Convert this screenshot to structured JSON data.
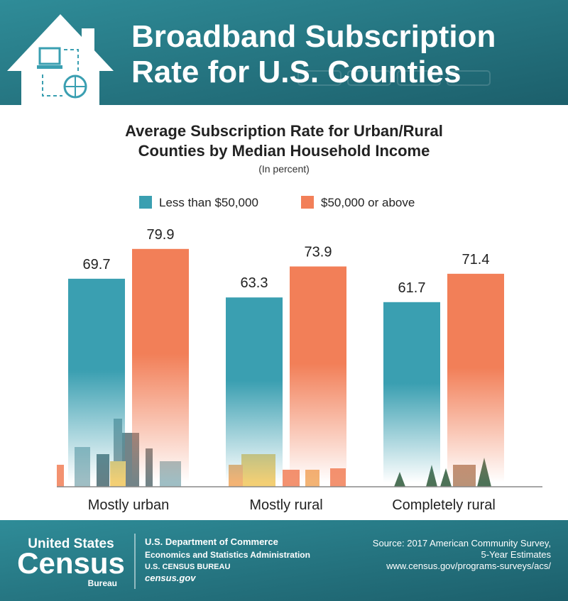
{
  "header": {
    "title_lines": [
      "Broadband Subscription",
      "Rate for U.S. Counties"
    ]
  },
  "chart_data": {
    "type": "bar",
    "title_lines": [
      "Average Subscription Rate for Urban/Rural",
      "Counties by Median Household Income"
    ],
    "subtitle": "(In percent)",
    "categories": [
      "Mostly urban",
      "Mostly rural",
      "Completely rural"
    ],
    "series": [
      {
        "name": "Less than $50,000",
        "color": "#3a9fb1",
        "values": [
          69.7,
          63.3,
          61.7
        ]
      },
      {
        "name": "$50,000 or above",
        "color": "#f27f58",
        "values": [
          79.9,
          73.9,
          71.4
        ]
      }
    ]
  },
  "footer": {
    "logo_top": "United States",
    "logo_main": "Census",
    "logo_bottom": "Bureau",
    "dept": "U.S. Department of Commerce",
    "admin": "Economics and Statistics Administration",
    "bureau": "U.S. CENSUS BUREAU",
    "site": "census.gov",
    "source_lines": [
      "Source: 2017 American Community Survey,",
      "5-Year Estimates",
      "www.census.gov/programs-surveys/acs/"
    ]
  }
}
